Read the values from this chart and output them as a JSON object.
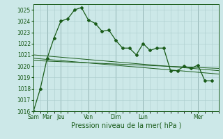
{
  "xlabel": "Pression niveau de la mer( hPa )",
  "bg_color": "#cce8e8",
  "grid_color": "#aacccc",
  "line_color": "#1a5c1a",
  "ylim": [
    1016,
    1025.5
  ],
  "yticks": [
    1016,
    1017,
    1018,
    1019,
    1020,
    1021,
    1022,
    1023,
    1024,
    1025
  ],
  "major_xticks": [
    0,
    2,
    4,
    8,
    12,
    16,
    24
  ],
  "major_xlabels": [
    "Sam",
    "Mar",
    "Jeu",
    "Ven",
    "Dim",
    "Lun",
    "Mer"
  ],
  "xlim": [
    0,
    27
  ],
  "series1_x": [
    0,
    1,
    2,
    3,
    4,
    5,
    6,
    7,
    8,
    9,
    10,
    11,
    12,
    13,
    14,
    15,
    16,
    17,
    18,
    19,
    20,
    21,
    22,
    23,
    24,
    25,
    26
  ],
  "series1_y": [
    1016.0,
    1018.0,
    1020.7,
    1022.5,
    1024.0,
    1024.2,
    1025.0,
    1025.2,
    1024.1,
    1023.8,
    1023.1,
    1023.2,
    1022.3,
    1021.6,
    1021.6,
    1021.0,
    1022.0,
    1021.4,
    1021.6,
    1021.6,
    1019.6,
    1019.6,
    1020.0,
    1019.8,
    1020.1,
    1018.7,
    1018.7
  ],
  "series2_x": [
    0,
    27
  ],
  "series2_y": [
    1020.7,
    1019.3
  ],
  "series3_x": [
    0,
    27
  ],
  "series3_y": [
    1020.5,
    1019.8
  ],
  "series4_x": [
    0,
    27
  ],
  "series4_y": [
    1021.0,
    1019.6
  ],
  "ndays": 27,
  "marker": "D",
  "markersize": 2.0,
  "linewidth": 0.9,
  "thin_linewidth": 0.7,
  "xlabel_fontsize": 7,
  "tick_fontsize": 5.5
}
